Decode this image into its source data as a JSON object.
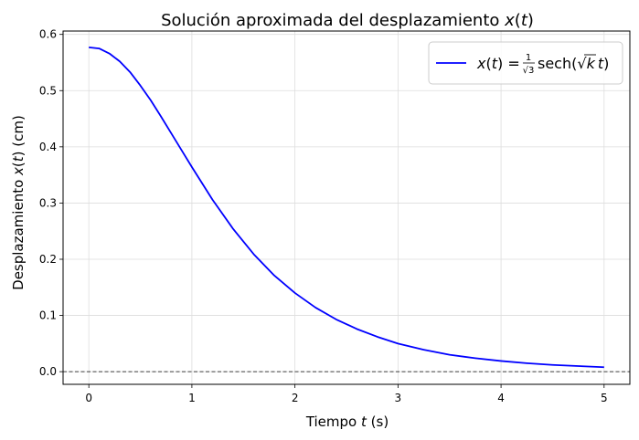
{
  "chart_data": {
    "type": "line",
    "title": "Solución aproximada del desplazamiento x(t)",
    "title_parts": {
      "prefix": "Solución aproximada del desplazamiento ",
      "var": "x",
      "open": "(",
      "arg": "t",
      "close": ")"
    },
    "xlabel": "Tiempo t (s)",
    "xlabel_parts": {
      "prefix": "Tiempo ",
      "var": "t",
      "suffix": " (s)"
    },
    "ylabel": "Desplazamiento x(t) (cm)",
    "ylabel_parts": {
      "prefix": "Desplazamiento ",
      "var": "x",
      "open": "(",
      "arg": "t",
      "close": ")",
      "suffix": " (cm)"
    },
    "xlim": [
      -0.25,
      5.25
    ],
    "ylim": [
      -0.0225,
      0.606
    ],
    "xticks": [
      0,
      1,
      2,
      3,
      4,
      5
    ],
    "xtick_labels": [
      "0",
      "1",
      "2",
      "3",
      "4",
      "5"
    ],
    "yticks": [
      0.0,
      0.1,
      0.2,
      0.3,
      0.4,
      0.5,
      0.6
    ],
    "ytick_labels": [
      "0.0",
      "0.1",
      "0.2",
      "0.3",
      "0.4",
      "0.5",
      "0.6"
    ],
    "grid": true,
    "reference_line": {
      "y": 0,
      "style": "dashed",
      "color": "#000000"
    },
    "legend": {
      "placement": "top-right",
      "label": "x(t) = (1/√3) sech(√k t)"
    },
    "series": [
      {
        "name": "x(t) = (1/√3) sech(√k t)",
        "color": "#0000ff",
        "x": [
          0,
          0.1,
          0.2,
          0.3,
          0.4,
          0.5,
          0.6,
          0.7,
          0.8,
          0.9,
          1.0,
          1.2,
          1.4,
          1.6,
          1.8,
          2.0,
          2.2,
          2.4,
          2.6,
          2.8,
          3.0,
          3.25,
          3.5,
          3.75,
          4.0,
          4.25,
          4.5,
          4.75,
          5.0
        ],
        "y": [
          0.577,
          0.575,
          0.566,
          0.552,
          0.533,
          0.509,
          0.483,
          0.454,
          0.424,
          0.394,
          0.364,
          0.306,
          0.254,
          0.209,
          0.171,
          0.14,
          0.114,
          0.093,
          0.076,
          0.062,
          0.05,
          0.039,
          0.03,
          0.024,
          0.019,
          0.015,
          0.012,
          0.01,
          0.008
        ]
      }
    ]
  },
  "legend_parts": {
    "lhs_var": "x",
    "lhs_open": "(",
    "lhs_arg": "t",
    "lhs_close": ")",
    "equals": " = ",
    "frac_num": "1",
    "frac_den": "√3",
    "func": "sech(",
    "sqrt": "√",
    "k": "k",
    "t": "t",
    "close": ")"
  }
}
